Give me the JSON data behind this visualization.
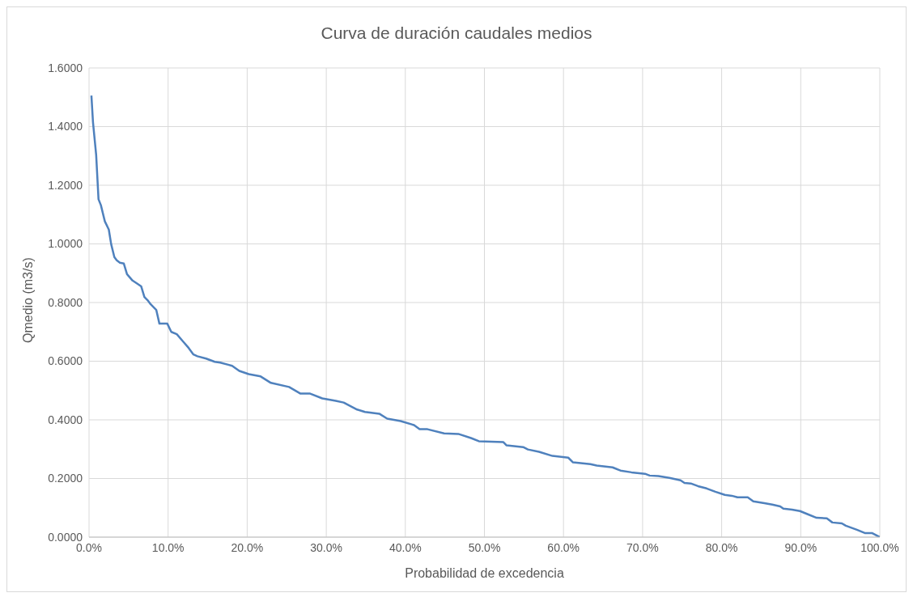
{
  "chart_data": {
    "type": "line",
    "title": "Curva de duración caudales medios",
    "xlabel": "Probabilidad de excedencia",
    "ylabel": "Qmedio (m3/s)",
    "x": [
      0.3,
      0.5,
      0.9,
      1.2,
      1.5,
      2.0,
      2.5,
      2.8,
      3.2,
      3.5,
      3.9,
      4.4,
      4.8,
      5.5,
      6.0,
      6.6,
      7.0,
      7.4,
      7.8,
      8.5,
      8.9,
      9.9,
      10.4,
      11.1,
      11.9,
      12.6,
      13.2,
      13.7,
      14.8,
      15.9,
      16.6,
      17.6,
      18.1,
      19.0,
      20.2,
      21.7,
      23.0,
      25.3,
      26.7,
      27.9,
      29.5,
      31.2,
      32.2,
      33.9,
      34.9,
      36.7,
      37.7,
      39.4,
      41.1,
      41.8,
      42.8,
      44.9,
      46.7,
      48.3,
      49.3,
      52.4,
      52.8,
      54.9,
      55.5,
      56.9,
      58.6,
      60.6,
      61.2,
      63.4,
      64.2,
      66.2,
      67.2,
      68.6,
      70.3,
      70.9,
      72.0,
      73.4,
      74.8,
      75.3,
      76.1,
      77.0,
      78.1,
      79.2,
      80.4,
      81.3,
      82.0,
      83.3,
      84.0,
      85.4,
      86.4,
      87.4,
      87.8,
      88.9,
      89.9,
      90.9,
      92.0,
      93.3,
      94.0,
      95.2,
      95.7,
      97.1,
      98.1,
      99.0,
      100
    ],
    "series": [
      {
        "color": "#4f81bd",
        "values": [
          1.506,
          1.415,
          1.304,
          1.152,
          1.132,
          1.077,
          1.049,
          0.999,
          0.955,
          0.944,
          0.936,
          0.933,
          0.897,
          0.875,
          0.866,
          0.855,
          0.819,
          0.808,
          0.794,
          0.775,
          0.728,
          0.728,
          0.7,
          0.692,
          0.667,
          0.645,
          0.623,
          0.617,
          0.609,
          0.598,
          0.595,
          0.588,
          0.584,
          0.567,
          0.556,
          0.548,
          0.526,
          0.512,
          0.49,
          0.49,
          0.473,
          0.465,
          0.459,
          0.435,
          0.427,
          0.421,
          0.404,
          0.396,
          0.382,
          0.368,
          0.368,
          0.354,
          0.352,
          0.338,
          0.327,
          0.324,
          0.313,
          0.307,
          0.299,
          0.291,
          0.277,
          0.271,
          0.255,
          0.249,
          0.244,
          0.238,
          0.227,
          0.221,
          0.216,
          0.21,
          0.208,
          0.202,
          0.194,
          0.185,
          0.183,
          0.174,
          0.166,
          0.155,
          0.144,
          0.141,
          0.136,
          0.136,
          0.122,
          0.116,
          0.111,
          0.105,
          0.097,
          0.094,
          0.089,
          0.078,
          0.066,
          0.064,
          0.05,
          0.047,
          0.039,
          0.025,
          0.014,
          0.014,
          0.0
        ]
      }
    ],
    "xlim": [
      0,
      100
    ],
    "xticks": [
      {
        "value": 0,
        "label": "0.0%"
      },
      {
        "value": 10,
        "label": "10.0%"
      },
      {
        "value": 20,
        "label": "20.0%"
      },
      {
        "value": 30,
        "label": "30.0%"
      },
      {
        "value": 40,
        "label": "40.0%"
      },
      {
        "value": 50,
        "label": "50.0%"
      },
      {
        "value": 60,
        "label": "60.0%"
      },
      {
        "value": 70,
        "label": "70.0%"
      },
      {
        "value": 80,
        "label": "80.0%"
      },
      {
        "value": 90,
        "label": "90.0%"
      },
      {
        "value": 100,
        "label": "100.0%"
      }
    ],
    "ylim": [
      0,
      1.6
    ],
    "yticks": [
      {
        "value": 0,
        "label": "0.0000"
      },
      {
        "value": 0.2,
        "label": "0.2000"
      },
      {
        "value": 0.4,
        "label": "0.4000"
      },
      {
        "value": 0.6,
        "label": "0.6000"
      },
      {
        "value": 0.8,
        "label": "0.8000"
      },
      {
        "value": 1.0,
        "label": "1.0000"
      },
      {
        "value": 1.2,
        "label": "1.2000"
      },
      {
        "value": 1.4,
        "label": "1.4000"
      },
      {
        "value": 1.6,
        "label": "1.6000"
      }
    ],
    "grid": true,
    "marker": "none",
    "line_style": "solid"
  }
}
